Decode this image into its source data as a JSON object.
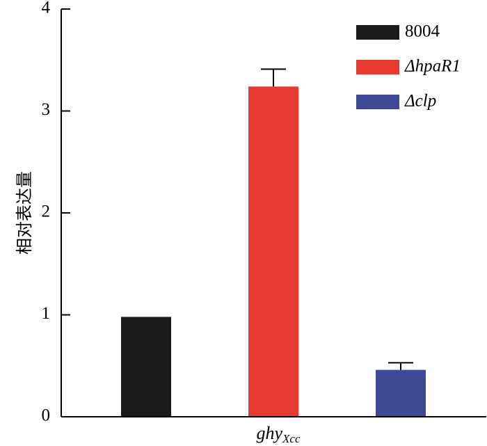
{
  "chart_data": {
    "type": "bar",
    "ylabel": "相对表达量",
    "xlabel": {
      "main": "ghy",
      "sub": "Xcc"
    },
    "ylim": [
      0,
      4
    ],
    "yticks": [
      0,
      1,
      2,
      3,
      4
    ],
    "grid": false,
    "legend_position": "top-right",
    "series": [
      {
        "name": "8004",
        "value": 0.98,
        "error": 0.0,
        "color": "#1a1a1a",
        "italic": false
      },
      {
        "name": "ΔhpaR1",
        "value": 3.24,
        "error": 0.17,
        "color": "#e63a30",
        "italic": true
      },
      {
        "name": "Δclp",
        "value": 0.46,
        "error": 0.07,
        "color": "#3f4a94",
        "italic": true
      }
    ]
  }
}
